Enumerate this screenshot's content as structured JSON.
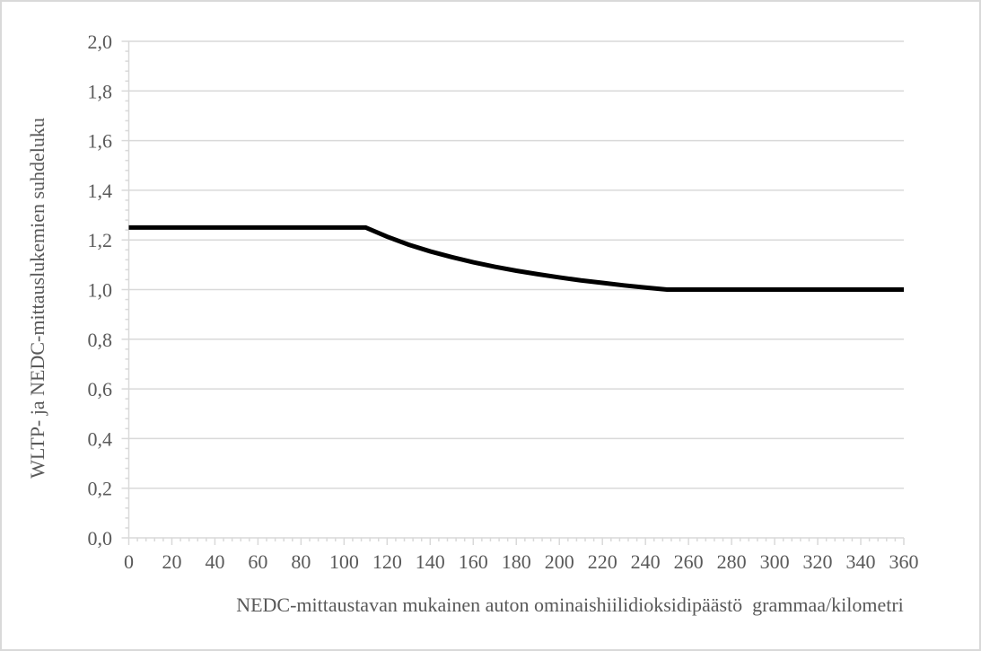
{
  "window": {
    "background_color": "#ffffff",
    "border_color": "#d9d9d9"
  },
  "chart_data": {
    "type": "line",
    "title": "",
    "xlabel": "NEDC-mittaustavan mukainen auton ominaishiilidioksidipäästö  grammaa/kilometri",
    "ylabel": "WLTP- ja NEDC-mittauslukemien suhdeluku",
    "xlim": [
      0,
      360
    ],
    "ylim": [
      0,
      2
    ],
    "x_major_tick_step": 20,
    "y_major_tick_step": 0.2,
    "x_minor_tick_step": 4,
    "y_minor_tick_step": 0.04,
    "x_tick_labels": [
      "0",
      "20",
      "40",
      "60",
      "80",
      "100",
      "120",
      "140",
      "160",
      "180",
      "200",
      "220",
      "240",
      "260",
      "280",
      "300",
      "320",
      "340",
      "360"
    ],
    "y_tick_labels": [
      "0,0",
      "0,2",
      "0,4",
      "0,6",
      "0,8",
      "1,0",
      "1,2",
      "1,4",
      "1,6",
      "1,8",
      "2,0"
    ],
    "grid": "horizontal-only",
    "legend": "none",
    "decimal_separator": ",",
    "line_width": 5,
    "colors": {
      "line": "#000000",
      "axis": "#d9d9d9",
      "grid": "#d9d9d9",
      "text": "#595959"
    },
    "series": [
      {
        "points": [
          [
            0,
            1.25
          ],
          [
            110,
            1.25
          ],
          [
            120,
            1.213
          ],
          [
            130,
            1.181
          ],
          [
            140,
            1.154
          ],
          [
            150,
            1.131
          ],
          [
            160,
            1.11
          ],
          [
            170,
            1.092
          ],
          [
            180,
            1.076
          ],
          [
            190,
            1.062
          ],
          [
            200,
            1.049
          ],
          [
            210,
            1.037
          ],
          [
            220,
            1.027
          ],
          [
            230,
            1.017
          ],
          [
            240,
            1.008
          ],
          [
            250,
            1.0
          ],
          [
            360,
            1.0
          ]
        ]
      }
    ]
  }
}
